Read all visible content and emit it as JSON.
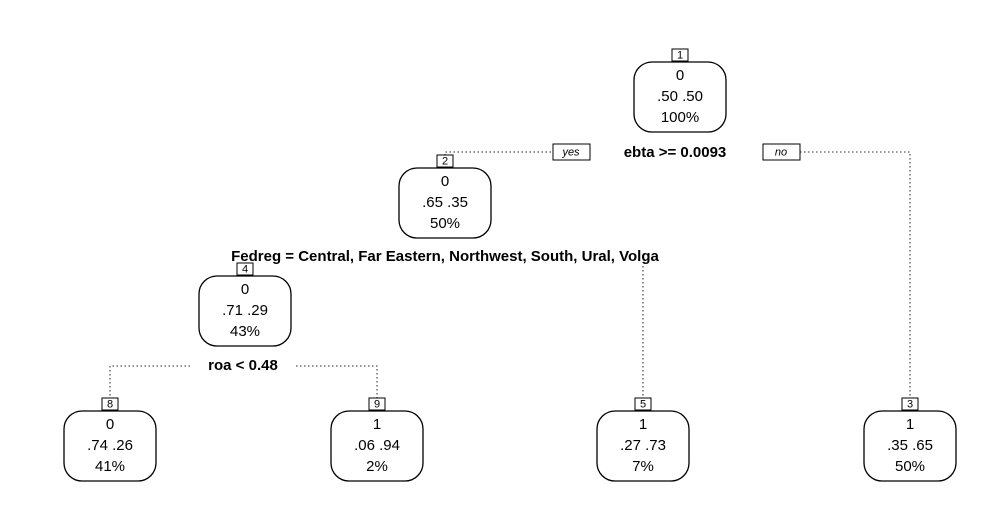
{
  "tree": {
    "nodes": [
      {
        "id": "1",
        "class": "0",
        "probs": ".50  .50",
        "percent": "100%"
      },
      {
        "id": "2",
        "class": "0",
        "probs": ".65  .35",
        "percent": "50%"
      },
      {
        "id": "4",
        "class": "0",
        "probs": ".71  .29",
        "percent": "43%"
      },
      {
        "id": "8",
        "class": "0",
        "probs": ".74  .26",
        "percent": "41%"
      },
      {
        "id": "9",
        "class": "1",
        "probs": ".06  .94",
        "percent": "2%"
      },
      {
        "id": "5",
        "class": "1",
        "probs": ".27  .73",
        "percent": "7%"
      },
      {
        "id": "3",
        "class": "1",
        "probs": ".35  .65",
        "percent": "50%"
      }
    ],
    "splits": [
      "ebta >= 0.0093",
      "Fedreg = Central, Far Eastern, Northwest, South, Ural, Volga",
      "roa < 0.48"
    ],
    "branch_labels": {
      "yes": "yes",
      "no": "no"
    }
  }
}
